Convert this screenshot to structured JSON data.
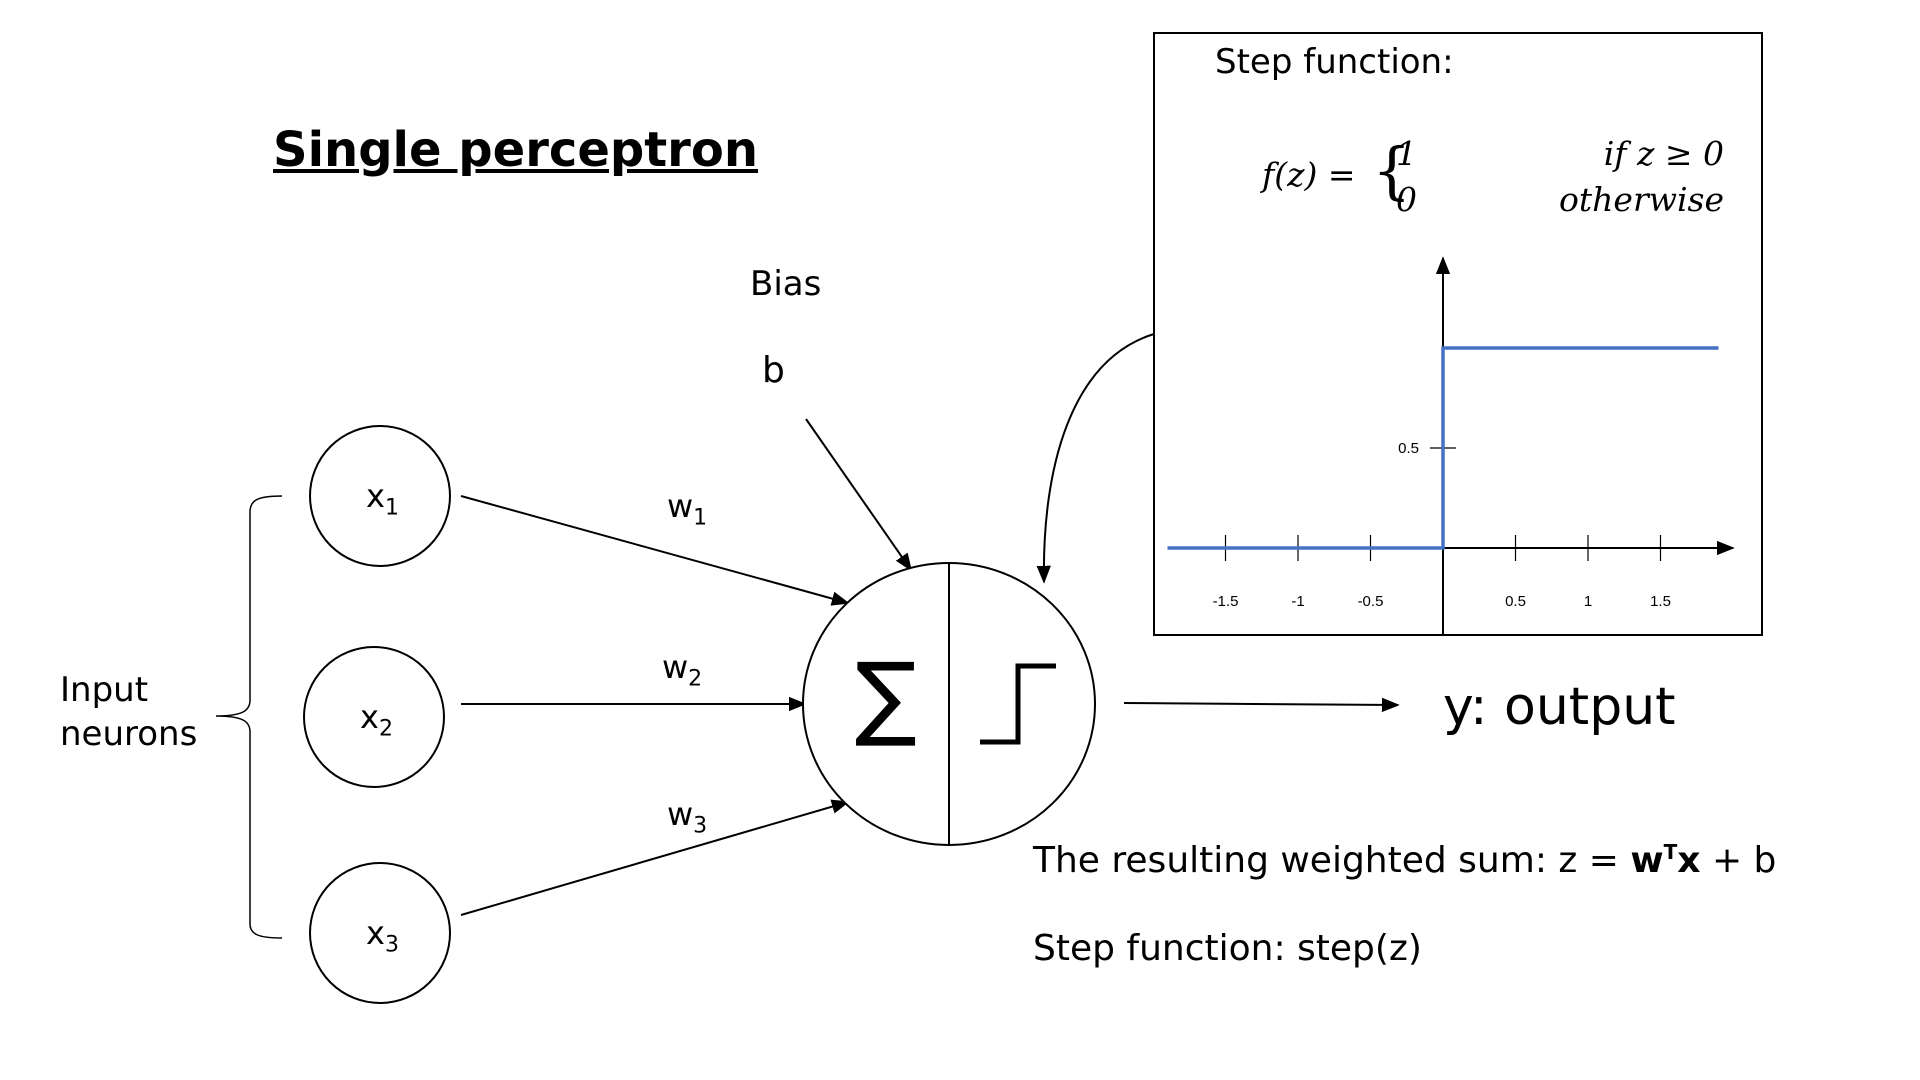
{
  "title": "Single perceptron",
  "bias": {
    "label": "Bias",
    "symbol": "b"
  },
  "inputs": [
    {
      "base": "x",
      "sub": "1"
    },
    {
      "base": "x",
      "sub": "2"
    },
    {
      "base": "x",
      "sub": "3"
    }
  ],
  "weights": [
    {
      "base": "w",
      "sub": "1"
    },
    {
      "base": "w",
      "sub": "2"
    },
    {
      "base": "w",
      "sub": "3"
    }
  ],
  "input_group_label": "Input neurons",
  "neuron": {
    "sum_symbol": "∑",
    "activation_icon": "step-function-icon"
  },
  "output_label": "y: output",
  "weighted_sum": {
    "prefix": "The resulting weighted sum: z = ",
    "w": "w",
    "sup": "T",
    "x": "x",
    "suffix": " + b"
  },
  "step_text": "Step function: step(z)",
  "step_box": {
    "title": "Step function:",
    "formula": {
      "lhs": "f(z) = ",
      "case1_value": "1",
      "case1_cond": "if z ≥ 0",
      "case2_value": "0",
      "case2_cond": "otherwise"
    }
  },
  "chart_data": {
    "type": "line",
    "x_ticks": [
      "-1.5",
      "-1",
      "-0.5",
      "0.5",
      "1",
      "1.5"
    ],
    "y_ticks": [
      "0.5"
    ],
    "series": [
      {
        "x": [
          -1.9,
          0,
          0,
          1.9
        ],
        "y": [
          0,
          0,
          1,
          1
        ]
      }
    ],
    "xlim": [
      -1.9,
      2.0
    ],
    "ylim": [
      0,
      1.45
    ],
    "line_color": "#4472c4"
  }
}
